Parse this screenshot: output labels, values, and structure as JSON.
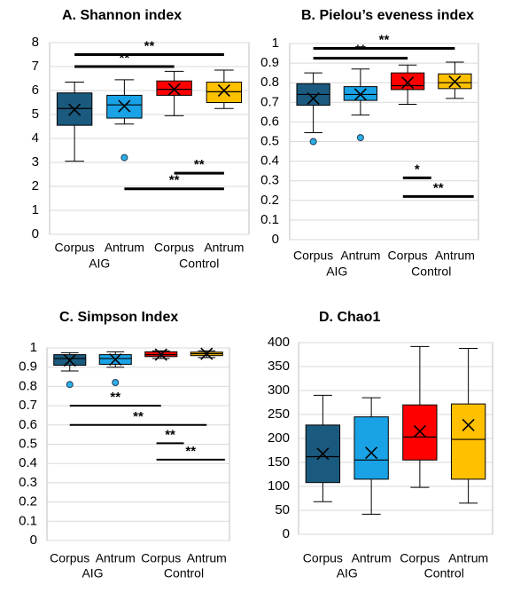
{
  "colors": {
    "corpus_aig": "#1a5a7e",
    "antrum_aig": "#19a3e6",
    "corpus_control": "#ff0000",
    "antrum_control": "#ffc000",
    "outlier": "#2bb0e8",
    "grid": "#d9d9d9",
    "sig_line": "#000000"
  },
  "chart_data": [
    {
      "type": "box",
      "title": "A. Shannon index",
      "ylim": [
        0,
        8
      ],
      "yticks": [
        "0",
        "1",
        "2",
        "3",
        "4",
        "5",
        "6",
        "7",
        "8"
      ],
      "grid": true,
      "categories": [
        "Corpus",
        "Antrum",
        "Corpus",
        "Antrum"
      ],
      "groups": [
        "AIG",
        "Control"
      ],
      "boxes": [
        {
          "min": 3.05,
          "q1": 4.55,
          "median": 5.25,
          "q3": 5.9,
          "max": 6.35,
          "mean": 5.2,
          "outliers": []
        },
        {
          "min": 4.6,
          "q1": 4.85,
          "median": 5.4,
          "q3": 5.8,
          "max": 6.45,
          "mean": 5.35,
          "outliers": [
            3.2
          ]
        },
        {
          "min": 4.95,
          "q1": 5.8,
          "median": 6.05,
          "q3": 6.4,
          "max": 6.8,
          "mean": 6.05,
          "outliers": []
        },
        {
          "min": 5.25,
          "q1": 5.5,
          "median": 5.95,
          "q3": 6.35,
          "max": 6.85,
          "mean": 6.0,
          "outliers": []
        }
      ],
      "sig": [
        {
          "label": "**",
          "from": 0,
          "to": 3,
          "y": 7.5
        },
        {
          "label": "**",
          "from": 0,
          "to": 2,
          "y": 7.0
        },
        {
          "label": "**",
          "from": 2,
          "to": 3,
          "y": 2.55
        },
        {
          "label": "**",
          "from": 1,
          "to": 3,
          "y": 1.9
        }
      ]
    },
    {
      "type": "box",
      "title": "B.   Pielou’s eveness index",
      "ylim": [
        0,
        1
      ],
      "yticks": [
        "0",
        "0.1",
        "0.2",
        "0.3",
        "0.4",
        "0.5",
        "0.6",
        "0.7",
        "0.8",
        "0.9",
        "1"
      ],
      "grid": true,
      "categories": [
        "Corpus",
        "Antrum",
        "Corpus",
        "Antrum"
      ],
      "groups": [
        "AIG",
        "Control"
      ],
      "boxes": [
        {
          "min": 0.545,
          "q1": 0.685,
          "median": 0.74,
          "q3": 0.795,
          "max": 0.85,
          "mean": 0.72,
          "outliers": [
            0.5
          ]
        },
        {
          "min": 0.635,
          "q1": 0.71,
          "median": 0.74,
          "q3": 0.78,
          "max": 0.87,
          "mean": 0.74,
          "outliers": [
            0.52
          ]
        },
        {
          "min": 0.69,
          "q1": 0.765,
          "median": 0.785,
          "q3": 0.85,
          "max": 0.89,
          "mean": 0.8,
          "outliers": []
        },
        {
          "min": 0.72,
          "q1": 0.77,
          "median": 0.8,
          "q3": 0.845,
          "max": 0.905,
          "mean": 0.805,
          "outliers": []
        }
      ],
      "sig": [
        {
          "label": "**",
          "from": 0,
          "to": 3,
          "y": 0.975
        },
        {
          "label": "**",
          "from": 0,
          "to": 2,
          "y": 0.925
        },
        {
          "label": "*",
          "from": 1.9,
          "to": 2.5,
          "y": 0.315
        },
        {
          "label": "**",
          "from": 1.9,
          "to": 3.4,
          "y": 0.22
        }
      ]
    },
    {
      "type": "box",
      "title": "C. Simpson Index",
      "ylim": [
        0,
        1
      ],
      "yticks": [
        "0",
        "0.1",
        "0.2",
        "0.3",
        "0.4",
        "0.5",
        "0.6",
        "0.7",
        "0.8",
        "0.9",
        "1"
      ],
      "grid": true,
      "categories": [
        "Corpus",
        "Antrum",
        "Corpus",
        "Antrum"
      ],
      "groups": [
        "AIG",
        "Control"
      ],
      "boxes": [
        {
          "min": 0.88,
          "q1": 0.91,
          "median": 0.945,
          "q3": 0.965,
          "max": 0.975,
          "mean": 0.935,
          "outliers": [
            0.81
          ]
        },
        {
          "min": 0.9,
          "q1": 0.915,
          "median": 0.945,
          "q3": 0.965,
          "max": 0.98,
          "mean": 0.94,
          "outliers": [
            0.82
          ]
        },
        {
          "min": 0.945,
          "q1": 0.955,
          "median": 0.965,
          "q3": 0.98,
          "max": 0.985,
          "mean": 0.965,
          "outliers": []
        },
        {
          "min": 0.95,
          "q1": 0.96,
          "median": 0.97,
          "q3": 0.978,
          "max": 0.985,
          "mean": 0.97,
          "outliers": []
        }
      ],
      "sig": [
        {
          "label": "**",
          "from": 0,
          "to": 2,
          "y": 0.7
        },
        {
          "label": "**",
          "from": 0,
          "to": 3,
          "y": 0.6
        },
        {
          "label": "**",
          "from": 1.9,
          "to": 2.5,
          "y": 0.505
        },
        {
          "label": "**",
          "from": 1.9,
          "to": 3.4,
          "y": 0.42
        }
      ]
    },
    {
      "type": "box",
      "title": "D. Chao1",
      "ylim": [
        0,
        400
      ],
      "yticks": [
        "0",
        "50",
        "100",
        "150",
        "200",
        "250",
        "300",
        "350",
        "400"
      ],
      "grid": true,
      "categories": [
        "Corpus",
        "Antrum",
        "Corpus",
        "Antrum"
      ],
      "groups": [
        "AIG",
        "Control"
      ],
      "boxes": [
        {
          "min": 68,
          "q1": 108,
          "median": 162,
          "q3": 228,
          "max": 290,
          "mean": 168,
          "outliers": []
        },
        {
          "min": 42,
          "q1": 115,
          "median": 155,
          "q3": 245,
          "max": 285,
          "mean": 170,
          "outliers": []
        },
        {
          "min": 98,
          "q1": 155,
          "median": 203,
          "q3": 270,
          "max": 392,
          "mean": 215,
          "outliers": []
        },
        {
          "min": 65,
          "q1": 115,
          "median": 198,
          "q3": 272,
          "max": 388,
          "mean": 228,
          "outliers": []
        }
      ],
      "sig": []
    }
  ]
}
